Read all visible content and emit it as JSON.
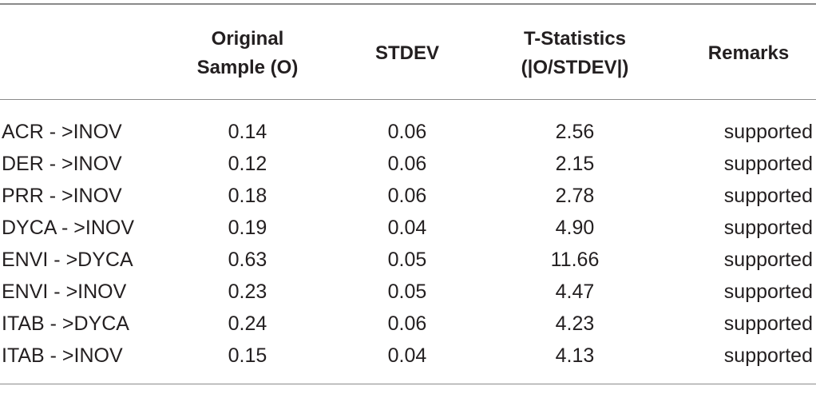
{
  "table": {
    "headers": {
      "label": "",
      "original_line1": "Original",
      "original_line2": "Sample (O)",
      "stdev": "STDEV",
      "tstat_line1": "T-Statistics",
      "tstat_line2": "(|O/STDEV|)",
      "remarks": "Remarks"
    },
    "rows": [
      {
        "path": "ACR - >INOV",
        "original": "0.14",
        "stdev": "0.06",
        "t": "2.56",
        "remark": "supported"
      },
      {
        "path": "DER - >INOV",
        "original": "0.12",
        "stdev": "0.06",
        "t": "2.15",
        "remark": "supported"
      },
      {
        "path": "PRR - >INOV",
        "original": "0.18",
        "stdev": "0.06",
        "t": "2.78",
        "remark": "supported"
      },
      {
        "path": "DYCA - >INOV",
        "original": "0.19",
        "stdev": "0.04",
        "t": "4.90",
        "remark": "supported"
      },
      {
        "path": "ENVI - >DYCA",
        "original": "0.63",
        "stdev": "0.05",
        "t": "11.66",
        "remark": "supported"
      },
      {
        "path": "ENVI - >INOV",
        "original": "0.23",
        "stdev": "0.05",
        "t": "4.47",
        "remark": "supported"
      },
      {
        "path": "ITAB - >DYCA",
        "original": "0.24",
        "stdev": "0.06",
        "t": "4.23",
        "remark": "supported"
      },
      {
        "path": "ITAB - >INOV",
        "original": "0.15",
        "stdev": "0.04",
        "t": "4.13",
        "remark": "supported"
      }
    ]
  }
}
